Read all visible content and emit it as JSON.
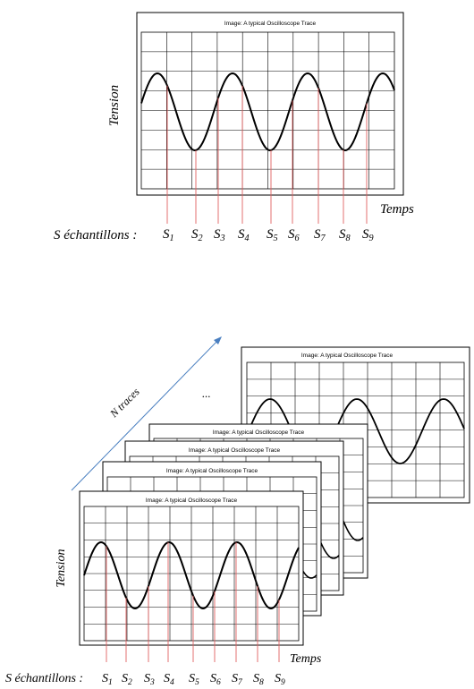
{
  "top_figure": {
    "title": "Image: A typical Oscilloscope Trace",
    "y_label": "Tension",
    "x_label": "Temps",
    "samples_label": "S échantillons :",
    "samples": [
      "1",
      "2",
      "3",
      "4",
      "5",
      "6",
      "7",
      "8",
      "9"
    ]
  },
  "bottom_figure": {
    "title": "Image: A typical Oscilloscope Trace",
    "y_label": "Tension",
    "x_label": "Temps",
    "samples_label": "S échantillons :",
    "samples": [
      "1",
      "2",
      "3",
      "4",
      "5",
      "6",
      "7",
      "8",
      "9"
    ],
    "traces_label": "N traces",
    "ellipsis": "..."
  },
  "colors": {
    "trace": "#000000",
    "sample_line": "#e06060",
    "arrow": "#4a7fc0",
    "grid": "#000000"
  }
}
